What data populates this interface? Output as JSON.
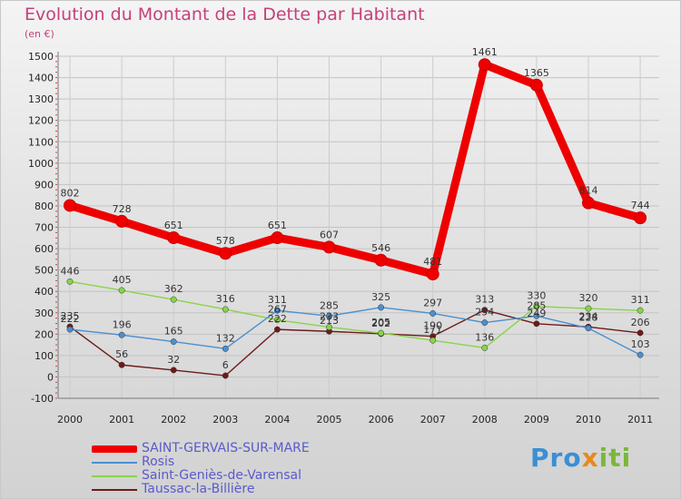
{
  "chart_data": {
    "type": "line",
    "title": "Evolution du Montant de la Dette par Habitant",
    "unit": "(en €)",
    "categories": [
      "2000",
      "2001",
      "2002",
      "2003",
      "2004",
      "2005",
      "2006",
      "2007",
      "2008",
      "2009",
      "2010",
      "2011"
    ],
    "ylim": [
      -100,
      1500
    ],
    "yticks": [
      -100,
      0,
      100,
      200,
      300,
      400,
      500,
      600,
      700,
      800,
      900,
      1000,
      1100,
      1200,
      1300,
      1400,
      1500
    ],
    "grid": true,
    "series": [
      {
        "name": "SAINT-GERVAIS-SUR-MARE",
        "color": "#ee0000",
        "values": [
          802,
          728,
          651,
          578,
          651,
          607,
          546,
          481,
          1461,
          1365,
          814,
          744
        ]
      },
      {
        "name": "Rosis",
        "color": "#4a90d0",
        "values": [
          222,
          196,
          165,
          132,
          311,
          285,
          325,
          297,
          254,
          285,
          228,
          103
        ]
      },
      {
        "name": "Saint-Geniès-de-Varensal",
        "color": "#88d44a",
        "values": [
          446,
          405,
          362,
          316,
          267,
          233,
          205,
          171,
          136,
          330,
          320,
          311
        ]
      },
      {
        "name": "Taussac-la-Billière",
        "color": "#6e1a1a",
        "values": [
          235,
          56,
          32,
          6,
          222,
          213,
          202,
          190,
          313,
          249,
          234,
          206
        ]
      }
    ]
  },
  "legend": [
    "SAINT-GERVAIS-SUR-MARE",
    "Rosis",
    "Saint-Geniès-de-Varensal",
    "Taussac-la-Billière"
  ],
  "brand": {
    "p1": "Pro",
    "p2": "x",
    "p3": "iti"
  }
}
